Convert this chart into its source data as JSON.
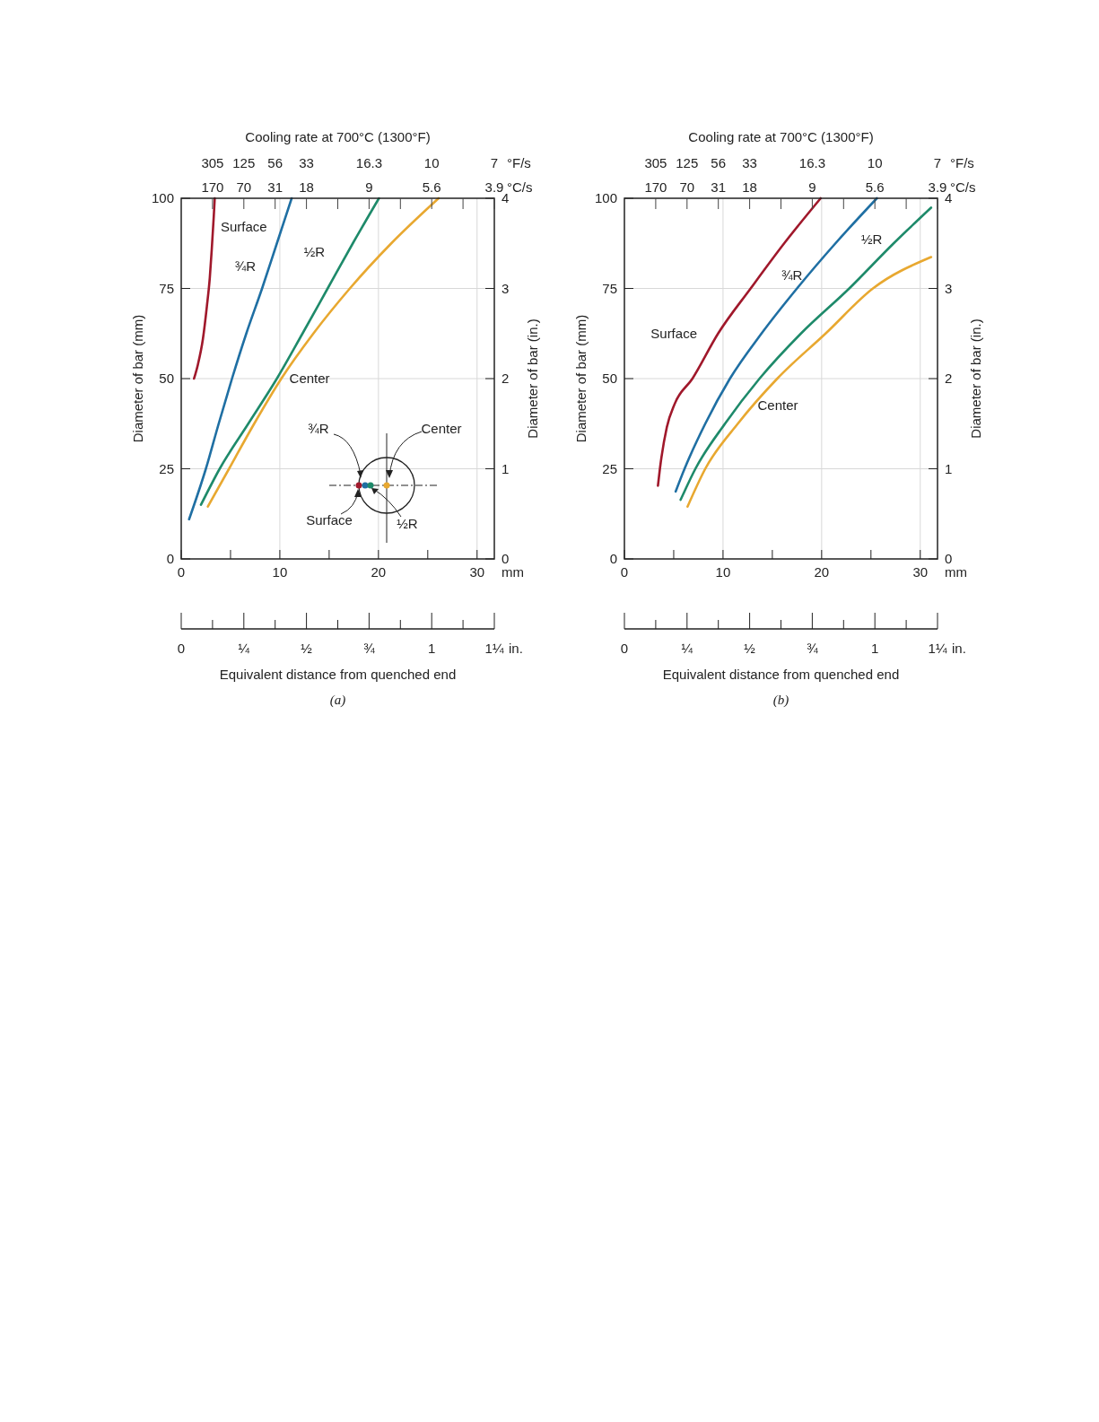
{
  "chart_data": [
    {
      "type": "line",
      "title": "Cooling rate at 700°C (1300°F)",
      "xlabel": "Equivalent distance from quenched end",
      "ylabel": "Diameter of bar (mm)",
      "y2label": "Diameter of bar (in.)",
      "xlim": [
        0,
        31.75
      ],
      "xticks": [
        0,
        {
          "value": 5,
          "label": null
        },
        10,
        {
          "value": 15,
          "label": null
        },
        20,
        {
          "value": 25,
          "label": null
        },
        30
      ],
      "ylim": [
        0,
        100
      ],
      "yticks": [
        0,
        25,
        50,
        75,
        100
      ],
      "y2lim": [
        0,
        4
      ],
      "y2ticks": [
        0,
        1,
        2,
        3,
        4
      ],
      "x2lim": [
        0,
        1.25
      ],
      "x2ticks": [
        {
          "value": 0,
          "label": "0"
        },
        {
          "value": 0.125,
          "label": null
        },
        {
          "value": 0.25,
          "label": "¼"
        },
        {
          "value": 0.375,
          "label": null
        },
        {
          "value": 0.5,
          "label": "½"
        },
        {
          "value": 0.625,
          "label": null
        },
        {
          "value": 0.75,
          "label": "¾"
        },
        {
          "value": 0.875,
          "label": null
        },
        {
          "value": 1,
          "label": "1"
        },
        {
          "value": 1.125,
          "label": null
        },
        {
          "value": 1.25,
          "label": "1¼"
        }
      ],
      "grid": true,
      "series": [
        {
          "name": "Surface",
          "color": "#a0182b",
          "x": [
            1.3,
            1.7,
            2.2,
            2.6,
            2.9,
            3.1,
            3.3,
            3.4
          ],
          "values": [
            50,
            54,
            61,
            70,
            78,
            86,
            95,
            100
          ]
        },
        {
          "name": "¾R",
          "color": "#1f6fa3",
          "x": [
            0.8,
            2.5,
            3.8,
            5.15,
            6.6,
            8.2,
            9.7,
            11.2
          ],
          "values": [
            11,
            25,
            37.5,
            50,
            62.5,
            75,
            87.5,
            100
          ]
        },
        {
          "name": "½R",
          "color": "#1e8a6a",
          "x": [
            2.0,
            3.9,
            6.8,
            9.7,
            12.3,
            14.85,
            17.4,
            20.05
          ],
          "values": [
            15,
            25,
            37.5,
            50,
            62.5,
            75,
            87.5,
            100
          ]
        },
        {
          "name": "Center",
          "color": "#e8a830",
          "x": [
            2.7,
            4.85,
            7.4,
            10.15,
            13.4,
            17.1,
            21.3,
            26.1
          ],
          "values": [
            14.5,
            25,
            37.5,
            50,
            62.5,
            75,
            87.5,
            100
          ]
        }
      ],
      "annotations": [
        "mm",
        "in.",
        "°F/s",
        "°C/s",
        "(a)",
        "305",
        "125",
        "56",
        "33",
        "16.3",
        "10",
        "7",
        "170",
        "70",
        "31",
        "18",
        "9",
        "5.6",
        "3.9",
        "¾R",
        "Center",
        "Surface",
        "½R"
      ]
    },
    {
      "type": "line",
      "title": "Cooling rate at 700°C (1300°F)",
      "xlabel": "Equivalent distance from quenched end",
      "ylabel": "Diameter of bar (mm)",
      "y2label": "Diameter of bar (in.)",
      "xlim": [
        0,
        31.75
      ],
      "xticks": [
        0,
        {
          "value": 5,
          "label": null
        },
        10,
        {
          "value": 15,
          "label": null
        },
        20,
        {
          "value": 25,
          "label": null
        },
        30
      ],
      "ylim": [
        0,
        100
      ],
      "yticks": [
        0,
        25,
        50,
        75,
        100
      ],
      "y2lim": [
        0,
        4
      ],
      "y2ticks": [
        0,
        1,
        2,
        3,
        4
      ],
      "x2lim": [
        0,
        1.25
      ],
      "x2ticks": [
        {
          "value": 0,
          "label": "0"
        },
        {
          "value": 0.125,
          "label": null
        },
        {
          "value": 0.25,
          "label": "¼"
        },
        {
          "value": 0.375,
          "label": null
        },
        {
          "value": 0.5,
          "label": "½"
        },
        {
          "value": 0.625,
          "label": null
        },
        {
          "value": 0.75,
          "label": "¾"
        },
        {
          "value": 0.875,
          "label": null
        },
        {
          "value": 1,
          "label": "1"
        },
        {
          "value": 1.125,
          "label": null
        },
        {
          "value": 1.25,
          "label": "1¼"
        }
      ],
      "grid": true,
      "series": [
        {
          "name": "Surface",
          "color": "#a0182b",
          "x": [
            3.4,
            3.6,
            4.3,
            5.1,
            6.9,
            9.5,
            12.8,
            16.2,
            19.9
          ],
          "values": [
            20.3,
            25,
            36.5,
            43,
            50,
            62.5,
            75,
            87.5,
            100
          ]
        },
        {
          "name": "¾R",
          "color": "#1f6fa3",
          "x": [
            5.2,
            6.1,
            8.2,
            10.7,
            13.9,
            17.5,
            21.4,
            25.6
          ],
          "values": [
            18.7,
            25,
            37.5,
            50,
            62.5,
            75,
            87.5,
            100
          ]
        },
        {
          "name": "½R",
          "color": "#1e8a6a",
          "x": [
            5.7,
            7.2,
            10.2,
            13.7,
            17.9,
            22.8,
            27.3,
            31.1
          ],
          "values": [
            16.4,
            25,
            37.5,
            50,
            62.5,
            75,
            87.5,
            97.4
          ]
        },
        {
          "name": "Center",
          "color": "#e8a830",
          "x": [
            6.4,
            8.2,
            11.5,
            15.5,
            20.4,
            25.2,
            31.1
          ],
          "values": [
            14.5,
            25,
            37.5,
            50,
            62.5,
            75,
            83.7
          ]
        }
      ],
      "annotations": [
        "mm",
        "in.",
        "°F/s",
        "°C/s",
        "(b)",
        "305",
        "125",
        "56",
        "33",
        "16.3",
        "10",
        "7",
        "170",
        "70",
        "31",
        "18",
        "9",
        "5.6",
        "3.9"
      ]
    }
  ]
}
